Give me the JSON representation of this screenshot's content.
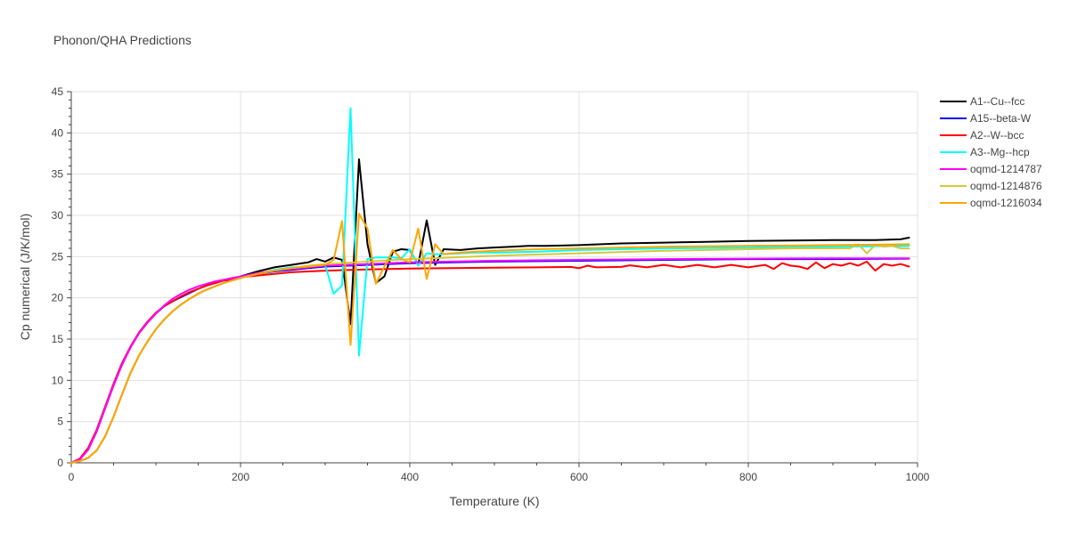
{
  "chart_data": {
    "type": "line",
    "title": "Phonon/QHA Predictions",
    "xlabel": "Temperature (K)",
    "ylabel": "Cp numerical (J/K/mol)",
    "xlim": [
      0,
      1000
    ],
    "ylim": [
      0,
      45
    ],
    "x_ticks": [
      "0",
      "200",
      "400",
      "600",
      "800",
      "1000"
    ],
    "y_ticks": [
      "0",
      "5",
      "10",
      "15",
      "20",
      "25",
      "30",
      "35",
      "40",
      "45"
    ],
    "grid": true,
    "legend_position": "right",
    "series": [
      {
        "name": "A1--Cu--fcc",
        "color": "#000000",
        "x": [
          0,
          10,
          20,
          30,
          40,
          50,
          60,
          70,
          80,
          90,
          100,
          110,
          120,
          130,
          140,
          150,
          160,
          170,
          180,
          190,
          200,
          220,
          240,
          260,
          280,
          290,
          300,
          310,
          320,
          330,
          340,
          350,
          360,
          370,
          380,
          390,
          400,
          410,
          420,
          430,
          440,
          460,
          480,
          500,
          520,
          540,
          560,
          600,
          650,
          700,
          750,
          800,
          850,
          900,
          950,
          980,
          990
        ],
        "y": [
          0,
          0.2,
          0.6,
          1.5,
          3.2,
          5.6,
          8.3,
          10.9,
          13.0,
          14.7,
          16.2,
          17.4,
          18.4,
          19.2,
          19.9,
          20.5,
          21.0,
          21.4,
          21.8,
          22.2,
          22.6,
          23.2,
          23.7,
          24.0,
          24.3,
          24.7,
          24.4,
          24.9,
          24.6,
          16.8,
          36.8,
          26.5,
          21.8,
          22.6,
          25.6,
          25.9,
          25.8,
          24.0,
          29.4,
          24.0,
          25.9,
          25.8,
          26.0,
          26.1,
          26.2,
          26.3,
          26.3,
          26.4,
          26.6,
          26.7,
          26.8,
          26.9,
          26.95,
          27.0,
          27.0,
          27.1,
          27.3
        ]
      },
      {
        "name": "A15--beta-W",
        "color": "#0000ff",
        "x": [
          0,
          10,
          20,
          30,
          40,
          50,
          60,
          70,
          80,
          90,
          100,
          110,
          120,
          130,
          140,
          150,
          160,
          170,
          180,
          190,
          200,
          220,
          240,
          260,
          280,
          300,
          350,
          400,
          500,
          600,
          700,
          800,
          900,
          990
        ],
        "y": [
          0,
          0.4,
          1.6,
          3.8,
          6.6,
          9.4,
          11.9,
          14.0,
          15.7,
          17.0,
          18.1,
          19.0,
          19.6,
          20.1,
          20.6,
          21.1,
          21.5,
          21.8,
          22.1,
          22.3,
          22.5,
          22.9,
          23.2,
          23.4,
          23.6,
          23.8,
          24.0,
          24.2,
          24.4,
          24.5,
          24.6,
          24.7,
          24.7,
          24.75
        ]
      },
      {
        "name": "A2--W--bcc",
        "color": "#ff0000",
        "x": [
          0,
          10,
          20,
          30,
          40,
          50,
          60,
          70,
          80,
          90,
          100,
          110,
          120,
          130,
          140,
          150,
          160,
          170,
          180,
          190,
          200,
          220,
          240,
          260,
          280,
          300,
          350,
          400,
          450,
          500,
          550,
          590,
          600,
          610,
          620,
          650,
          660,
          680,
          700,
          720,
          740,
          760,
          780,
          800,
          820,
          830,
          840,
          850,
          860,
          870,
          880,
          890,
          900,
          910,
          920,
          930,
          940,
          950,
          960,
          970,
          980,
          990
        ],
        "y": [
          0,
          0.5,
          1.8,
          4.0,
          6.8,
          9.6,
          12.1,
          14.1,
          15.8,
          17.1,
          18.2,
          19.0,
          19.6,
          20.2,
          20.7,
          21.1,
          21.5,
          21.8,
          22.1,
          22.3,
          22.5,
          22.7,
          22.9,
          23.1,
          23.2,
          23.3,
          23.45,
          23.55,
          23.6,
          23.65,
          23.7,
          23.75,
          23.6,
          23.9,
          23.7,
          23.75,
          23.95,
          23.7,
          24.0,
          23.7,
          24.0,
          23.7,
          24.0,
          23.7,
          24.0,
          23.5,
          24.2,
          23.9,
          23.8,
          23.5,
          24.3,
          23.6,
          24.1,
          23.9,
          24.2,
          23.9,
          24.4,
          23.3,
          24.1,
          23.9,
          24.1,
          23.8
        ]
      },
      {
        "name": "A3--Mg--hcp",
        "color": "#00ffff",
        "x": [
          0,
          10,
          20,
          30,
          40,
          50,
          60,
          70,
          80,
          90,
          100,
          110,
          120,
          130,
          140,
          150,
          160,
          170,
          180,
          190,
          200,
          220,
          240,
          260,
          280,
          300,
          310,
          320,
          330,
          340,
          350,
          360,
          370,
          380,
          390,
          400,
          410,
          420,
          430,
          440,
          460,
          480,
          500,
          550,
          600,
          700,
          800,
          900,
          990
        ],
        "y": [
          0,
          0.2,
          0.6,
          1.5,
          3.2,
          5.6,
          8.3,
          10.9,
          13.0,
          14.7,
          16.2,
          17.4,
          18.4,
          19.2,
          19.9,
          20.5,
          21.0,
          21.4,
          21.8,
          22.1,
          22.4,
          22.9,
          23.4,
          23.7,
          23.8,
          24.0,
          20.5,
          21.5,
          43.0,
          13.0,
          24.7,
          24.9,
          24.9,
          24.9,
          24.8,
          25.9,
          23.9,
          25.4,
          25.3,
          25.3,
          25.4,
          25.5,
          25.5,
          25.6,
          25.8,
          26.0,
          26.1,
          26.2,
          26.3
        ]
      },
      {
        "name": "oqmd-1214787",
        "color": "#ff00ff",
        "x": [
          0,
          10,
          20,
          30,
          40,
          50,
          60,
          70,
          80,
          90,
          100,
          110,
          120,
          130,
          140,
          150,
          160,
          170,
          180,
          190,
          200,
          220,
          240,
          260,
          280,
          300,
          350,
          400,
          500,
          600,
          700,
          800,
          900,
          990
        ],
        "y": [
          0,
          0.4,
          1.6,
          3.8,
          6.6,
          9.4,
          11.9,
          14.0,
          15.7,
          17.0,
          18.1,
          19.1,
          19.9,
          20.5,
          21.0,
          21.4,
          21.7,
          22.0,
          22.2,
          22.4,
          22.6,
          23.0,
          23.3,
          23.5,
          23.7,
          23.9,
          24.1,
          24.3,
          24.5,
          24.6,
          24.7,
          24.75,
          24.8,
          24.8
        ]
      },
      {
        "name": "oqmd-1214876",
        "color": "#d4c93a",
        "x": [
          0,
          10,
          20,
          30,
          40,
          50,
          60,
          70,
          80,
          90,
          100,
          110,
          120,
          130,
          140,
          150,
          160,
          170,
          180,
          190,
          200,
          220,
          240,
          260,
          280,
          300,
          350,
          400,
          500,
          600,
          700,
          750,
          800,
          850,
          900,
          920,
          930,
          940,
          950,
          960,
          970,
          980,
          990
        ],
        "y": [
          0,
          0.2,
          0.6,
          1.5,
          3.2,
          5.6,
          8.3,
          10.9,
          13.0,
          14.7,
          16.2,
          17.4,
          18.4,
          19.2,
          19.9,
          20.5,
          21.0,
          21.4,
          21.8,
          22.1,
          22.4,
          22.9,
          23.3,
          23.6,
          23.9,
          24.1,
          24.4,
          24.7,
          25.1,
          25.4,
          25.7,
          25.8,
          25.9,
          26.0,
          26.0,
          26.0,
          26.5,
          25.4,
          26.4,
          26.2,
          26.3,
          26.0,
          26.0
        ]
      },
      {
        "name": "oqmd-1216034",
        "color": "#ffa500",
        "x": [
          0,
          10,
          20,
          30,
          40,
          50,
          60,
          70,
          80,
          90,
          100,
          110,
          120,
          130,
          140,
          150,
          160,
          170,
          180,
          190,
          200,
          220,
          240,
          260,
          280,
          300,
          310,
          320,
          330,
          340,
          350,
          360,
          370,
          380,
          390,
          400,
          410,
          420,
          430,
          440,
          460,
          480,
          500,
          550,
          600,
          700,
          800,
          900,
          990
        ],
        "y": [
          0,
          0.2,
          0.6,
          1.5,
          3.2,
          5.6,
          8.3,
          10.9,
          13.0,
          14.7,
          16.2,
          17.4,
          18.4,
          19.2,
          19.9,
          20.5,
          21.0,
          21.4,
          21.8,
          22.1,
          22.4,
          22.9,
          23.3,
          23.6,
          23.8,
          24.0,
          24.6,
          29.3,
          14.3,
          30.2,
          28.4,
          21.7,
          23.8,
          25.8,
          24.7,
          24.3,
          28.4,
          22.3,
          26.5,
          25.3,
          25.5,
          25.6,
          25.7,
          25.9,
          26.0,
          26.2,
          26.3,
          26.4,
          26.5
        ]
      }
    ]
  }
}
